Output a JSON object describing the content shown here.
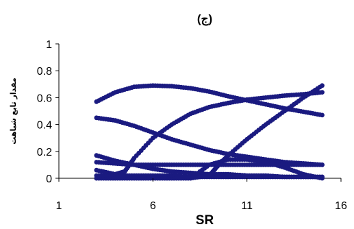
{
  "chart_data": {
    "type": "scatter",
    "title": "(ج)",
    "xlabel": "SR",
    "ylabel": "مقدار تابع شباهت",
    "xlim": [
      1,
      16
    ],
    "ylim": [
      0,
      1
    ],
    "xticks": [
      "1",
      "6",
      "11",
      "16"
    ],
    "yticks": [
      "0",
      "0.2",
      "0.4",
      "0.6",
      "0.8",
      "1"
    ],
    "grid": false,
    "legend": "none",
    "marker_color": "#1a1a80",
    "series": [
      {
        "x": [
          3,
          4,
          5,
          6,
          7,
          8,
          9,
          10,
          11,
          12,
          13,
          14,
          15
        ],
        "y": [
          0.57,
          0.64,
          0.68,
          0.69,
          0.685,
          0.67,
          0.645,
          0.61,
          0.58,
          0.55,
          0.52,
          0.495,
          0.47
        ]
      },
      {
        "x": [
          3,
          4,
          5,
          6,
          7,
          8,
          9,
          10,
          11,
          12,
          13,
          14,
          15
        ],
        "y": [
          0.45,
          0.43,
          0.39,
          0.34,
          0.29,
          0.25,
          0.21,
          0.18,
          0.16,
          0.14,
          0.12,
          0.11,
          0.1
        ]
      },
      {
        "x": [
          3,
          4,
          5,
          6,
          7,
          8,
          9,
          10,
          11,
          12,
          13,
          14,
          15
        ],
        "y": [
          0.17,
          0.13,
          0.1,
          0.07,
          0.05,
          0.04,
          0.03,
          0.03,
          0.02,
          0.02,
          0.01,
          0.01,
          0.01
        ]
      },
      {
        "x": [
          3,
          4,
          5,
          6,
          7,
          8,
          9,
          10,
          11,
          12,
          13,
          14,
          15
        ],
        "y": [
          0.12,
          0.11,
          0.1,
          0.1,
          0.1,
          0.1,
          0.1,
          0.1,
          0.1,
          0.1,
          0.1,
          0.1,
          0.1
        ]
      },
      {
        "x": [
          3,
          4,
          4.5,
          5,
          6,
          7,
          8,
          9,
          10,
          11,
          12,
          13,
          14,
          15
        ],
        "y": [
          0.06,
          0.03,
          0.05,
          0.15,
          0.3,
          0.4,
          0.48,
          0.53,
          0.56,
          0.585,
          0.6,
          0.615,
          0.625,
          0.64
        ]
      },
      {
        "x": [
          3,
          4,
          5,
          6,
          7,
          8,
          9,
          9.5,
          10,
          11,
          12,
          13,
          14,
          15
        ],
        "y": [
          0.0,
          0.0,
          0.0,
          0.0,
          0.0,
          0.0,
          0.02,
          0.1,
          0.17,
          0.29,
          0.4,
          0.5,
          0.6,
          0.69
        ]
      },
      {
        "x": [
          3,
          4,
          5,
          6,
          7,
          8,
          9,
          10,
          11,
          12,
          13,
          14,
          15
        ],
        "y": [
          0.0,
          0.0,
          0.0,
          0.0,
          0.0,
          0.0,
          0.1,
          0.14,
          0.14,
          0.12,
          0.08,
          0.03,
          0.0
        ]
      },
      {
        "x": [
          3,
          4,
          5,
          6,
          7,
          8,
          9,
          10,
          11,
          12,
          13,
          14,
          15
        ],
        "y": [
          0.02,
          0.02,
          0.02,
          0.02,
          0.02,
          0.01,
          0.01,
          0.01,
          0.01,
          0.01,
          0.01,
          0.01,
          0.01
        ]
      }
    ]
  }
}
